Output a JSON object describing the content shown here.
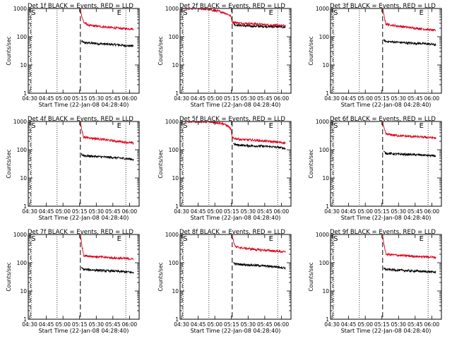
{
  "figure": {
    "subtitle_template": "BLACK = Events, RED = LLD",
    "xlabel": "Start Time (22-Jan-08 04:28:40)",
    "ylabel": "Counts/sec",
    "x_ticks": [
      "04:30",
      "04:45",
      "05:00",
      "05:15",
      "05:30",
      "05:45",
      "06:00"
    ],
    "y_ticks": [
      "1",
      "10",
      "100",
      "1000"
    ]
  },
  "colors": {
    "events": "#000000",
    "lld": "#e0001a"
  },
  "chart_data": [
    {
      "type": "line",
      "title": "Det 1f BLACK = Events, RED = LLD",
      "xlabel": "Start Time (22-Jan-08 04:28:40)",
      "ylabel": "Counts/sec",
      "yscale": "log",
      "ylim": [
        1,
        1000
      ],
      "xlim_minutes": [
        0,
        100
      ],
      "markers": {
        "S_min": 2,
        "E_min": 80
      },
      "vlines_dotted_min": [
        3,
        26,
        88
      ],
      "vline_dashed_min": 47,
      "series": [
        {
          "name": "Events",
          "color": "#000000",
          "points": [
            [
              48,
              70
            ],
            [
              50,
              62
            ],
            [
              60,
              58
            ],
            [
              70,
              55
            ],
            [
              80,
              52
            ],
            [
              90,
              48
            ],
            [
              95,
              47
            ]
          ]
        },
        {
          "name": "LLD",
          "color": "#e0001a",
          "points": [
            [
              47,
              1000
            ],
            [
              48,
              600
            ],
            [
              50,
              320
            ],
            [
              55,
              250
            ],
            [
              65,
              230
            ],
            [
              75,
              210
            ],
            [
              85,
              195
            ],
            [
              95,
              190
            ]
          ]
        }
      ]
    },
    {
      "type": "line",
      "title": "Det 2f BLACK = Events, RED = LLD",
      "xlabel": "Start Time (22-Jan-08 04:28:40)",
      "ylabel": "Counts/sec",
      "yscale": "log",
      "ylim": [
        1,
        1000
      ],
      "xlim_minutes": [
        0,
        100
      ],
      "markers": {
        "S_min": 2,
        "E_min": 80
      },
      "vlines_dotted_min": [
        3,
        26,
        88
      ],
      "vline_dashed_min": 47,
      "series": [
        {
          "name": "Events",
          "color": "#000000",
          "points": [
            [
              48,
              300
            ],
            [
              50,
              260
            ],
            [
              60,
              240
            ],
            [
              70,
              235
            ],
            [
              80,
              230
            ],
            [
              90,
              225
            ],
            [
              95,
              215
            ]
          ]
        },
        {
          "name": "LLD",
          "color": "#e0001a",
          "points": [
            [
              4,
              1000
            ],
            [
              18,
              1000
            ],
            [
              27,
              900
            ],
            [
              35,
              800
            ],
            [
              40,
              700
            ],
            [
              44,
              600
            ],
            [
              46,
              500
            ],
            [
              47,
              330
            ],
            [
              55,
              300
            ],
            [
              65,
              290
            ],
            [
              75,
              270
            ],
            [
              85,
              255
            ],
            [
              95,
              245
            ]
          ]
        }
      ]
    },
    {
      "type": "line",
      "title": "Det 3f BLACK = Events, RED = LLD",
      "xlabel": "Start Time (22-Jan-08 04:28:40)",
      "ylabel": "Counts/sec",
      "yscale": "log",
      "ylim": [
        1,
        1000
      ],
      "xlim_minutes": [
        0,
        100
      ],
      "markers": {
        "S_min": 2,
        "E_min": 80
      },
      "vlines_dotted_min": [
        3,
        26,
        88
      ],
      "vline_dashed_min": 47,
      "series": [
        {
          "name": "Events",
          "color": "#000000",
          "points": [
            [
              48,
              75
            ],
            [
              50,
              68
            ],
            [
              60,
              64
            ],
            [
              70,
              60
            ],
            [
              80,
              58
            ],
            [
              90,
              55
            ],
            [
              95,
              52
            ]
          ]
        },
        {
          "name": "LLD",
          "color": "#e0001a",
          "points": [
            [
              47,
              1000
            ],
            [
              48,
              600
            ],
            [
              50,
              280
            ],
            [
              60,
              240
            ],
            [
              70,
              215
            ],
            [
              80,
              195
            ],
            [
              90,
              175
            ],
            [
              95,
              165
            ]
          ]
        }
      ]
    },
    {
      "type": "line",
      "title": "Det 4f BLACK = Events, RED = LLD",
      "xlabel": "Start Time (22-Jan-08 04:28:40)",
      "ylabel": "Counts/sec",
      "yscale": "log",
      "ylim": [
        1,
        1000
      ],
      "xlim_minutes": [
        0,
        100
      ],
      "markers": {
        "S_min": 2,
        "E_min": 80
      },
      "vlines_dotted_min": [
        3,
        26,
        88
      ],
      "vline_dashed_min": 47,
      "series": [
        {
          "name": "Events",
          "color": "#000000",
          "points": [
            [
              48,
              70
            ],
            [
              50,
              62
            ],
            [
              60,
              58
            ],
            [
              70,
              55
            ],
            [
              80,
              52
            ],
            [
              90,
              48
            ],
            [
              95,
              45
            ]
          ]
        },
        {
          "name": "LLD",
          "color": "#e0001a",
          "points": [
            [
              47,
              1000
            ],
            [
              48,
              550
            ],
            [
              50,
              280
            ],
            [
              60,
              250
            ],
            [
              70,
              225
            ],
            [
              80,
              200
            ],
            [
              90,
              180
            ],
            [
              95,
              170
            ]
          ]
        }
      ]
    },
    {
      "type": "line",
      "title": "Det 5f BLACK = Events, RED = LLD",
      "xlabel": "Start Time (22-Jan-08 04:28:40)",
      "ylabel": "Counts/sec",
      "yscale": "log",
      "ylim": [
        1,
        1000
      ],
      "xlim_minutes": [
        0,
        100
      ],
      "markers": {
        "S_min": 2,
        "E_min": 80
      },
      "vlines_dotted_min": [
        3,
        26,
        88
      ],
      "vline_dashed_min": 47,
      "series": [
        {
          "name": "Events",
          "color": "#000000",
          "points": [
            [
              48,
              170
            ],
            [
              50,
              150
            ],
            [
              60,
              140
            ],
            [
              70,
              135
            ],
            [
              80,
              130
            ],
            [
              90,
              120
            ],
            [
              95,
              110
            ]
          ]
        },
        {
          "name": "LLD",
          "color": "#e0001a",
          "points": [
            [
              4,
              1000
            ],
            [
              18,
              1000
            ],
            [
              27,
              950
            ],
            [
              35,
              900
            ],
            [
              40,
              800
            ],
            [
              44,
              650
            ],
            [
              46,
              500
            ],
            [
              47,
              260
            ],
            [
              55,
              230
            ],
            [
              65,
              220
            ],
            [
              75,
              205
            ],
            [
              85,
              190
            ],
            [
              95,
              175
            ]
          ]
        }
      ]
    },
    {
      "type": "line",
      "title": "Det 6f BLACK = Events, RED = LLD",
      "xlabel": "Start Time (22-Jan-08 04:28:40)",
      "ylabel": "Counts/sec",
      "yscale": "log",
      "ylim": [
        1,
        1000
      ],
      "xlim_minutes": [
        0,
        100
      ],
      "markers": {
        "S_min": 2,
        "E_min": 80
      },
      "vlines_dotted_min": [
        3,
        26,
        88
      ],
      "vline_dashed_min": 47,
      "series": [
        {
          "name": "Events",
          "color": "#000000",
          "points": [
            [
              48,
              85
            ],
            [
              50,
              75
            ],
            [
              60,
              70
            ],
            [
              70,
              68
            ],
            [
              80,
              66
            ],
            [
              90,
              62
            ],
            [
              95,
              60
            ]
          ]
        },
        {
          "name": "LLD",
          "color": "#e0001a",
          "points": [
            [
              47,
              1000
            ],
            [
              48,
              600
            ],
            [
              50,
              360
            ],
            [
              60,
              320
            ],
            [
              70,
              300
            ],
            [
              80,
              285
            ],
            [
              90,
              270
            ],
            [
              95,
              260
            ]
          ]
        }
      ]
    },
    {
      "type": "line",
      "title": "Det 7f BLACK = Events, RED = LLD",
      "xlabel": "Start Time (22-Jan-08 04:28:40)",
      "ylabel": "Counts/sec",
      "yscale": "log",
      "ylim": [
        1,
        1000
      ],
      "xlim_minutes": [
        0,
        100
      ],
      "markers": {
        "S_min": 2,
        "E_min": 80
      },
      "vlines_dotted_min": [
        3,
        26,
        88
      ],
      "vline_dashed_min": 47,
      "series": [
        {
          "name": "Events",
          "color": "#000000",
          "points": [
            [
              48,
              65
            ],
            [
              50,
              58
            ],
            [
              60,
              55
            ],
            [
              70,
              52
            ],
            [
              80,
              50
            ],
            [
              90,
              47
            ],
            [
              95,
              45
            ]
          ]
        },
        {
          "name": "LLD",
          "color": "#e0001a",
          "points": [
            [
              47,
              1000
            ],
            [
              48,
              500
            ],
            [
              50,
              180
            ],
            [
              60,
              165
            ],
            [
              70,
              155
            ],
            [
              80,
              145
            ],
            [
              90,
              140
            ],
            [
              95,
              135
            ]
          ]
        }
      ]
    },
    {
      "type": "line",
      "title": "Det 8f BLACK = Events, RED = LLD",
      "xlabel": "Start Time (22-Jan-08 04:28:40)",
      "ylabel": "Counts/sec",
      "yscale": "log",
      "ylim": [
        1,
        1000
      ],
      "xlim_minutes": [
        0,
        100
      ],
      "markers": {
        "S_min": 2,
        "E_min": 80
      },
      "vlines_dotted_min": [
        3,
        26,
        88
      ],
      "vline_dashed_min": 47,
      "series": [
        {
          "name": "Events",
          "color": "#000000",
          "points": [
            [
              48,
              100
            ],
            [
              50,
              90
            ],
            [
              60,
              85
            ],
            [
              70,
              80
            ],
            [
              80,
              75
            ],
            [
              90,
              70
            ],
            [
              95,
              65
            ]
          ]
        },
        {
          "name": "LLD",
          "color": "#e0001a",
          "points": [
            [
              47,
              1000
            ],
            [
              48,
              600
            ],
            [
              50,
              360
            ],
            [
              60,
              320
            ],
            [
              70,
              290
            ],
            [
              80,
              270
            ],
            [
              90,
              250
            ],
            [
              95,
              240
            ]
          ]
        }
      ]
    },
    {
      "type": "line",
      "title": "Det 9f BLACK = Events, RED = LLD",
      "xlabel": "Start Time (22-Jan-08 04:28:40)",
      "ylabel": "Counts/sec",
      "yscale": "log",
      "ylim": [
        1,
        1000
      ],
      "xlim_minutes": [
        0,
        100
      ],
      "markers": {
        "S_min": 2,
        "E_min": 80
      },
      "vlines_dotted_min": [
        3,
        26,
        88
      ],
      "vline_dashed_min": 47,
      "series": [
        {
          "name": "Events",
          "color": "#000000",
          "points": [
            [
              48,
              65
            ],
            [
              50,
              58
            ],
            [
              60,
              55
            ],
            [
              70,
              52
            ],
            [
              80,
              50
            ],
            [
              90,
              48
            ],
            [
              95,
              46
            ]
          ]
        },
        {
          "name": "LLD",
          "color": "#e0001a",
          "points": [
            [
              47,
              1000
            ],
            [
              48,
              500
            ],
            [
              50,
              200
            ],
            [
              60,
              185
            ],
            [
              70,
              175
            ],
            [
              80,
              165
            ],
            [
              90,
              160
            ],
            [
              95,
              155
            ]
          ]
        }
      ]
    }
  ]
}
